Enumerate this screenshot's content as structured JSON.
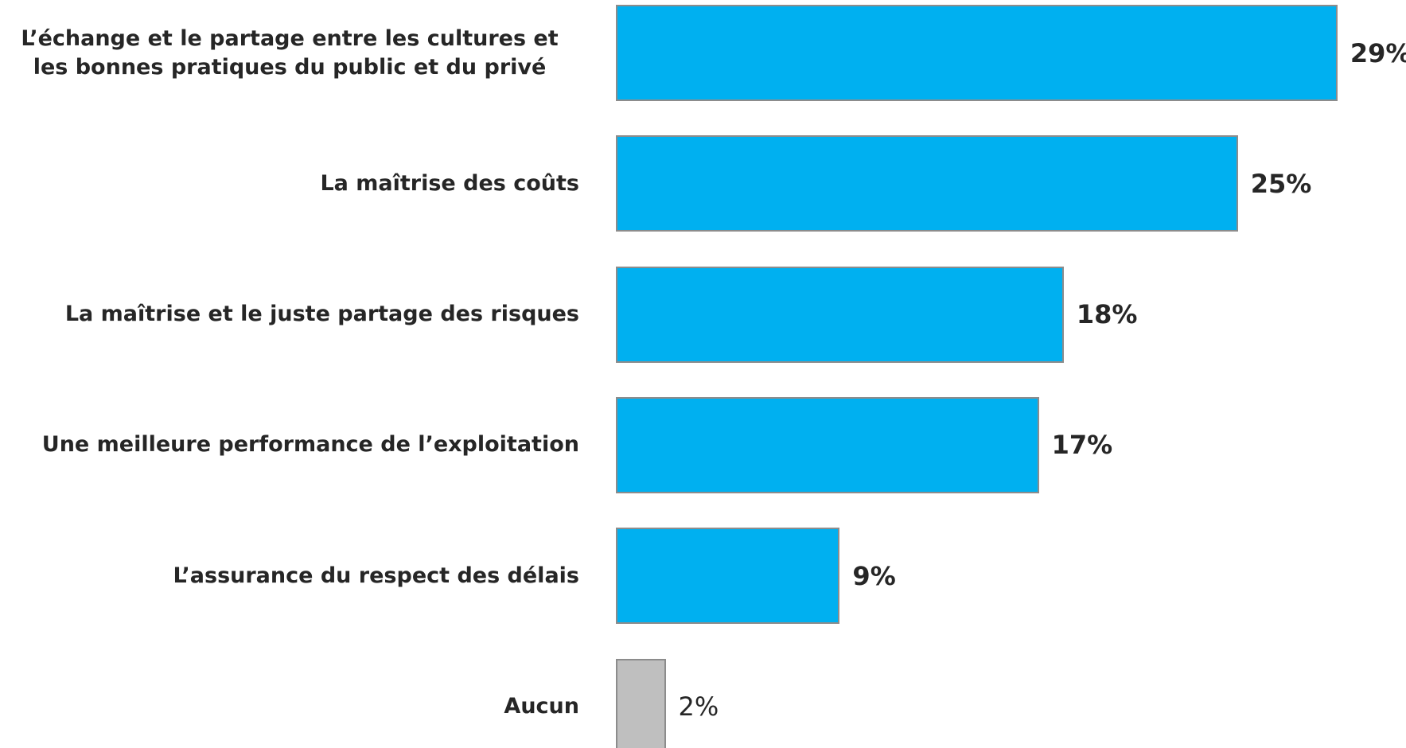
{
  "chart_data": {
    "type": "barh",
    "categories": [
      "L’échange et le partage entre les cultures et les bonnes pratiques du public et du privé",
      "La maîtrise des coûts",
      "La maîtrise et le juste partage des risques",
      "Une meilleure performance de l’exploitation",
      "L’assurance du respect des délais",
      "Aucun"
    ],
    "values": [
      29,
      25,
      18,
      17,
      9,
      2
    ],
    "value_labels": [
      "29%",
      "25%",
      "18%",
      "17%",
      "9%",
      "2%"
    ],
    "colors": [
      "#00b0f0",
      "#00b0f0",
      "#00b0f0",
      "#00b0f0",
      "#00b0f0",
      "#bfbfbf"
    ],
    "value_label_weights": [
      "bold",
      "bold",
      "bold",
      "bold",
      "bold",
      "normal"
    ]
  }
}
